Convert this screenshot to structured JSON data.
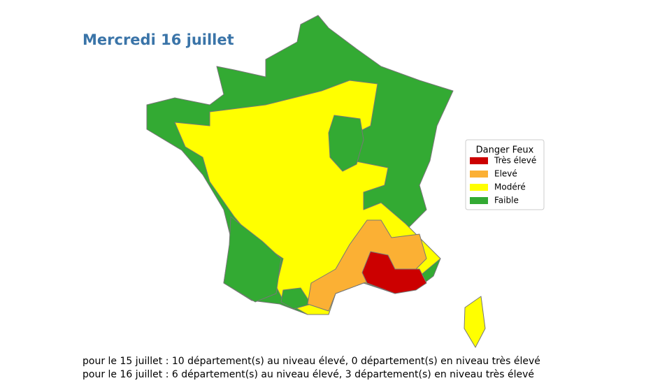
{
  "header": {
    "title": "Mercredi 16 juillet"
  },
  "legend": {
    "title": "Danger Feux",
    "items": [
      {
        "name": "Très élevé",
        "color": "#cc0000"
      },
      {
        "name": "Elevé",
        "color": "#fbb034"
      },
      {
        "name": "Modéré",
        "color": "#ffff00"
      },
      {
        "name": "Faible",
        "color": "#33aa33"
      }
    ]
  },
  "notes": [
    "pour le 15 juillet : 10 département(s) au niveau élevé, 0 département(s) en niveau très élevé",
    "pour le 16 juillet : 6 département(s) au niveau élevé, 3 département(s) en niveau très élevé"
  ]
}
